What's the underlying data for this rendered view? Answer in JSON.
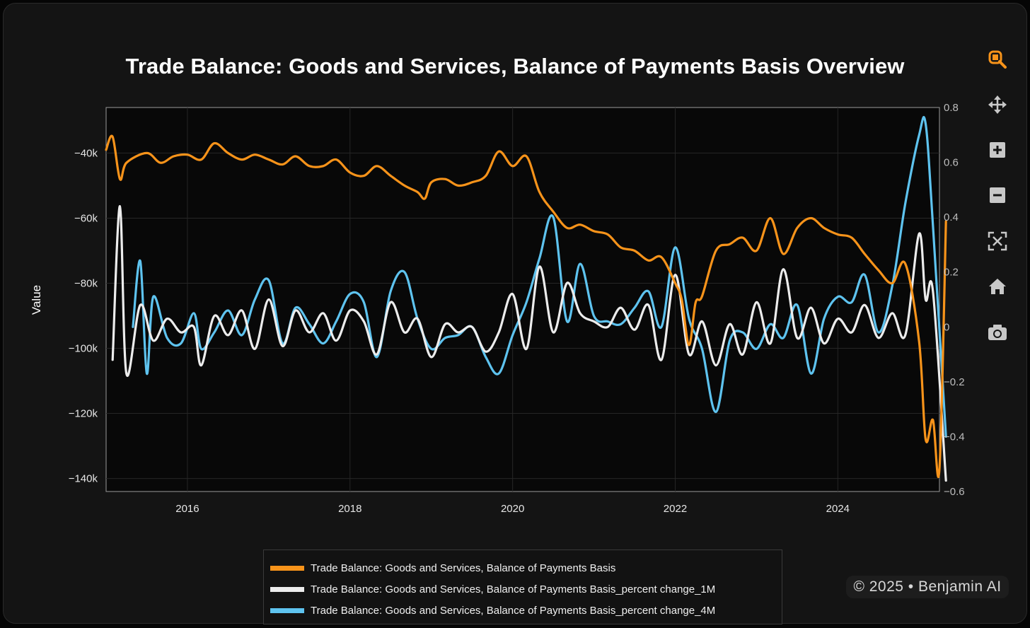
{
  "chart_data": {
    "type": "line",
    "title": "Trade Balance: Goods and Services, Balance of Payments Basis Overview",
    "ylabel": "Value",
    "xlabel": "",
    "x_range": [
      2015.0,
      2025.25
    ],
    "ylim_left": [
      -144000,
      -26000
    ],
    "ylim_right": [
      -0.6,
      0.8
    ],
    "x_ticks": [
      2016,
      2018,
      2020,
      2022,
      2024
    ],
    "x_tick_labels": [
      "2016",
      "2018",
      "2020",
      "2022",
      "2024"
    ],
    "y_left_ticks": [
      -40000,
      -60000,
      -80000,
      -100000,
      -120000,
      -140000
    ],
    "y_left_tick_labels": [
      "−40k",
      "−60k",
      "−80k",
      "−100k",
      "−120k",
      "−140k"
    ],
    "y_right_ticks": [
      0.8,
      0.6,
      0.4,
      0.2,
      0,
      -0.2,
      -0.4,
      -0.6
    ],
    "y_right_tick_labels": [
      "0.8",
      "0.6",
      "0.4",
      "0.2",
      "0",
      "−0.2",
      "−0.4",
      "−0.6"
    ],
    "grid": true,
    "legend_position": "bottom-center",
    "series": [
      {
        "name": "Trade Balance: Goods and Services, Balance of Payments Basis",
        "axis": "left",
        "color": "#f7931a",
        "points": [
          [
            2015.0,
            -39000
          ],
          [
            2015.08,
            -35000
          ],
          [
            2015.17,
            -48000
          ],
          [
            2015.25,
            -43000
          ],
          [
            2015.5,
            -40000
          ],
          [
            2015.67,
            -43000
          ],
          [
            2015.83,
            -41000
          ],
          [
            2016.0,
            -40500
          ],
          [
            2016.17,
            -42000
          ],
          [
            2016.33,
            -37000
          ],
          [
            2016.5,
            -40000
          ],
          [
            2016.67,
            -42000
          ],
          [
            2016.83,
            -40500
          ],
          [
            2017.0,
            -42000
          ],
          [
            2017.17,
            -43500
          ],
          [
            2017.33,
            -41000
          ],
          [
            2017.5,
            -44000
          ],
          [
            2017.67,
            -44000
          ],
          [
            2017.83,
            -42000
          ],
          [
            2018.0,
            -46000
          ],
          [
            2018.17,
            -47000
          ],
          [
            2018.33,
            -44000
          ],
          [
            2018.5,
            -47000
          ],
          [
            2018.67,
            -50000
          ],
          [
            2018.83,
            -52000
          ],
          [
            2018.92,
            -54000
          ],
          [
            2019.0,
            -49000
          ],
          [
            2019.17,
            -48000
          ],
          [
            2019.33,
            -50000
          ],
          [
            2019.5,
            -49000
          ],
          [
            2019.67,
            -47000
          ],
          [
            2019.83,
            -39500
          ],
          [
            2020.0,
            -44000
          ],
          [
            2020.17,
            -41000
          ],
          [
            2020.33,
            -52000
          ],
          [
            2020.5,
            -58000
          ],
          [
            2020.67,
            -63000
          ],
          [
            2020.83,
            -62000
          ],
          [
            2021.0,
            -64000
          ],
          [
            2021.17,
            -65000
          ],
          [
            2021.33,
            -69000
          ],
          [
            2021.5,
            -70000
          ],
          [
            2021.67,
            -73000
          ],
          [
            2021.83,
            -72000
          ],
          [
            2022.0,
            -80000
          ],
          [
            2022.08,
            -85000
          ],
          [
            2022.17,
            -99000
          ],
          [
            2022.25,
            -86000
          ],
          [
            2022.33,
            -84000
          ],
          [
            2022.5,
            -70000
          ],
          [
            2022.67,
            -68000
          ],
          [
            2022.83,
            -66000
          ],
          [
            2023.0,
            -70000
          ],
          [
            2023.17,
            -60000
          ],
          [
            2023.33,
            -71000
          ],
          [
            2023.5,
            -63000
          ],
          [
            2023.67,
            -60000
          ],
          [
            2023.83,
            -63000
          ],
          [
            2024.0,
            -65000
          ],
          [
            2024.17,
            -66000
          ],
          [
            2024.33,
            -71000
          ],
          [
            2024.5,
            -76000
          ],
          [
            2024.67,
            -80000
          ],
          [
            2024.83,
            -74000
          ],
          [
            2025.0,
            -98000
          ],
          [
            2025.08,
            -128000
          ],
          [
            2025.17,
            -122000
          ],
          [
            2025.25,
            -137000
          ],
          [
            2025.33,
            -61000
          ]
        ]
      },
      {
        "name": "Trade Balance: Goods and Services, Balance of Payments Basis_percent change_1M",
        "axis": "right",
        "color": "#ececec",
        "points": [
          [
            2015.08,
            -0.12
          ],
          [
            2015.17,
            0.44
          ],
          [
            2015.25,
            -0.17
          ],
          [
            2015.42,
            0.08
          ],
          [
            2015.58,
            -0.05
          ],
          [
            2015.75,
            0.03
          ],
          [
            2015.92,
            -0.02
          ],
          [
            2016.08,
            0.0
          ],
          [
            2016.17,
            -0.14
          ],
          [
            2016.33,
            0.04
          ],
          [
            2016.5,
            -0.03
          ],
          [
            2016.67,
            0.06
          ],
          [
            2016.83,
            -0.08
          ],
          [
            2017.0,
            0.1
          ],
          [
            2017.17,
            -0.07
          ],
          [
            2017.33,
            0.06
          ],
          [
            2017.5,
            -0.02
          ],
          [
            2017.67,
            0.05
          ],
          [
            2017.83,
            -0.05
          ],
          [
            2018.0,
            0.06
          ],
          [
            2018.17,
            0.02
          ],
          [
            2018.33,
            -0.1
          ],
          [
            2018.5,
            0.09
          ],
          [
            2018.67,
            -0.02
          ],
          [
            2018.83,
            0.03
          ],
          [
            2019.0,
            -0.11
          ],
          [
            2019.17,
            0.01
          ],
          [
            2019.33,
            -0.02
          ],
          [
            2019.5,
            0.0
          ],
          [
            2019.67,
            -0.09
          ],
          [
            2019.83,
            -0.02
          ],
          [
            2020.0,
            0.12
          ],
          [
            2020.17,
            -0.08
          ],
          [
            2020.33,
            0.22
          ],
          [
            2020.5,
            -0.02
          ],
          [
            2020.67,
            0.16
          ],
          [
            2020.83,
            0.05
          ],
          [
            2021.0,
            0.02
          ],
          [
            2021.17,
            0.0
          ],
          [
            2021.33,
            0.07
          ],
          [
            2021.5,
            -0.01
          ],
          [
            2021.67,
            0.08
          ],
          [
            2021.83,
            -0.12
          ],
          [
            2022.0,
            0.19
          ],
          [
            2022.17,
            -0.1
          ],
          [
            2022.33,
            0.02
          ],
          [
            2022.5,
            -0.14
          ],
          [
            2022.67,
            0.01
          ],
          [
            2022.83,
            -0.1
          ],
          [
            2023.0,
            0.09
          ],
          [
            2023.17,
            -0.06
          ],
          [
            2023.33,
            0.21
          ],
          [
            2023.5,
            -0.04
          ],
          [
            2023.67,
            0.07
          ],
          [
            2023.83,
            -0.06
          ],
          [
            2024.0,
            0.03
          ],
          [
            2024.17,
            -0.02
          ],
          [
            2024.33,
            0.08
          ],
          [
            2024.5,
            -0.04
          ],
          [
            2024.67,
            0.05
          ],
          [
            2024.83,
            -0.03
          ],
          [
            2025.0,
            0.34
          ],
          [
            2025.08,
            0.1
          ],
          [
            2025.17,
            0.13
          ],
          [
            2025.33,
            -0.56
          ]
        ]
      },
      {
        "name": "Trade Balance: Goods and Services, Balance of Payments Basis_percent change_4M",
        "axis": "right",
        "color": "#5ec3ef",
        "points": [
          [
            2015.33,
            0.0
          ],
          [
            2015.42,
            0.24
          ],
          [
            2015.5,
            -0.17
          ],
          [
            2015.58,
            0.11
          ],
          [
            2015.75,
            -0.04
          ],
          [
            2015.92,
            -0.06
          ],
          [
            2016.08,
            0.05
          ],
          [
            2016.17,
            -0.08
          ],
          [
            2016.33,
            -0.02
          ],
          [
            2016.5,
            0.06
          ],
          [
            2016.67,
            -0.03
          ],
          [
            2016.83,
            0.1
          ],
          [
            2017.0,
            0.17
          ],
          [
            2017.17,
            -0.06
          ],
          [
            2017.33,
            0.07
          ],
          [
            2017.5,
            0.01
          ],
          [
            2017.67,
            -0.06
          ],
          [
            2017.83,
            0.02
          ],
          [
            2018.0,
            0.12
          ],
          [
            2018.17,
            0.09
          ],
          [
            2018.33,
            -0.11
          ],
          [
            2018.5,
            0.13
          ],
          [
            2018.67,
            0.2
          ],
          [
            2018.83,
            0.03
          ],
          [
            2019.0,
            -0.08
          ],
          [
            2019.17,
            -0.04
          ],
          [
            2019.33,
            -0.03
          ],
          [
            2019.5,
            0.0
          ],
          [
            2019.67,
            -0.11
          ],
          [
            2019.83,
            -0.17
          ],
          [
            2020.0,
            -0.03
          ],
          [
            2020.17,
            0.09
          ],
          [
            2020.33,
            0.25
          ],
          [
            2020.5,
            0.4
          ],
          [
            2020.67,
            0.02
          ],
          [
            2020.83,
            0.23
          ],
          [
            2021.0,
            0.04
          ],
          [
            2021.17,
            0.02
          ],
          [
            2021.33,
            0.01
          ],
          [
            2021.5,
            0.07
          ],
          [
            2021.67,
            0.13
          ],
          [
            2021.83,
            0.0
          ],
          [
            2022.0,
            0.29
          ],
          [
            2022.17,
            0.03
          ],
          [
            2022.33,
            -0.08
          ],
          [
            2022.5,
            -0.31
          ],
          [
            2022.67,
            -0.05
          ],
          [
            2022.83,
            -0.02
          ],
          [
            2023.0,
            -0.08
          ],
          [
            2023.17,
            0.01
          ],
          [
            2023.33,
            -0.04
          ],
          [
            2023.5,
            0.08
          ],
          [
            2023.67,
            -0.17
          ],
          [
            2023.83,
            0.03
          ],
          [
            2024.0,
            0.11
          ],
          [
            2024.17,
            0.09
          ],
          [
            2024.33,
            0.19
          ],
          [
            2024.5,
            -0.02
          ],
          [
            2024.67,
            0.15
          ],
          [
            2024.83,
            0.45
          ],
          [
            2025.0,
            0.7
          ],
          [
            2025.08,
            0.74
          ],
          [
            2025.17,
            0.37
          ],
          [
            2025.33,
            -0.4
          ]
        ]
      }
    ]
  },
  "modebar": {
    "buttons": [
      {
        "name": "zoom-icon",
        "color": "#f7931a",
        "active": true
      },
      {
        "name": "pan-icon",
        "color": "#c8c8c8"
      },
      {
        "name": "zoom-in-icon",
        "color": "#c8c8c8"
      },
      {
        "name": "zoom-out-icon",
        "color": "#c8c8c8"
      },
      {
        "name": "autoscale-icon",
        "color": "#c8c8c8"
      },
      {
        "name": "reset-axes-home-icon",
        "color": "#c8c8c8"
      },
      {
        "name": "camera-icon",
        "color": "#c8c8c8"
      }
    ]
  },
  "watermark": {
    "text": "© 2025 • Benjamin AI"
  }
}
